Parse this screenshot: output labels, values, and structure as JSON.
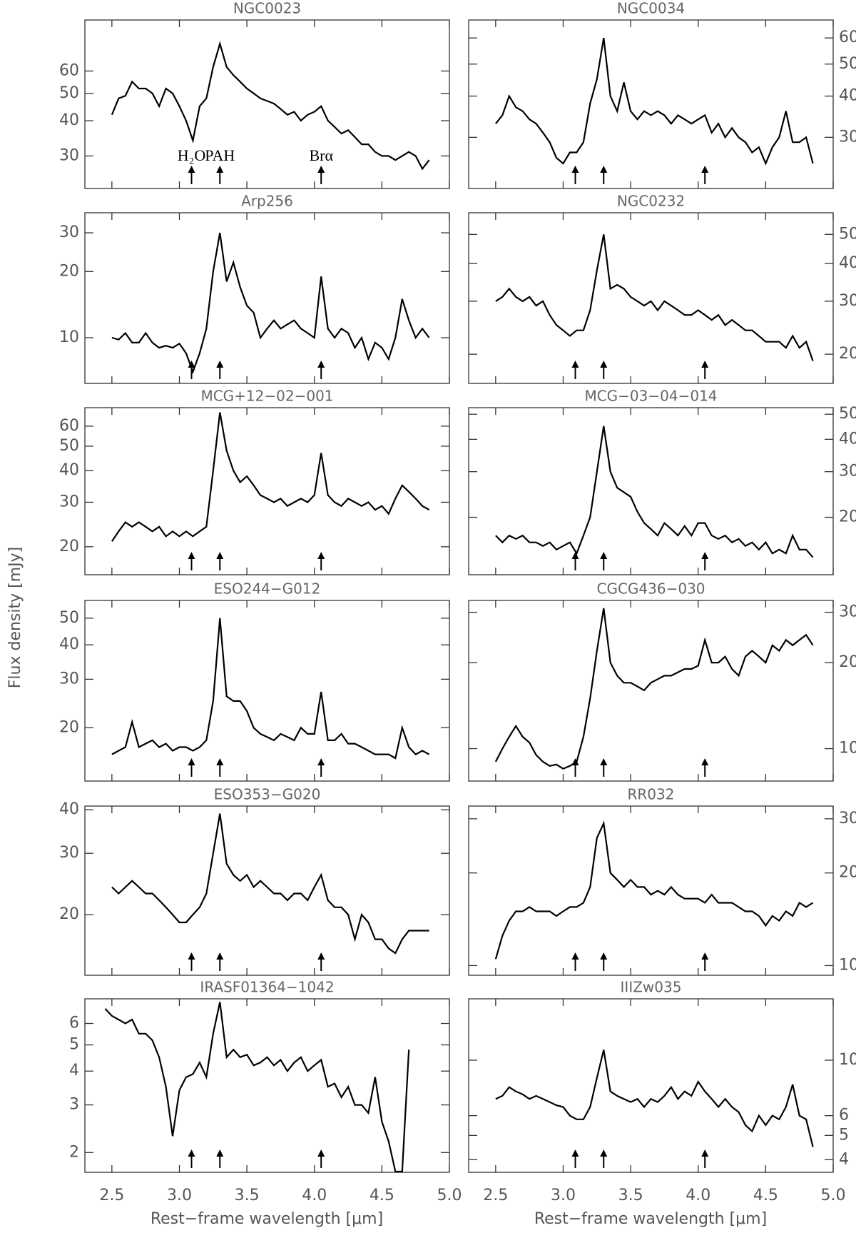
{
  "y_label": "Flux density [mJy]",
  "x_label": "Rest−frame wavelength [μm]",
  "xlim": [
    2.3,
    5.0
  ],
  "xticks": [
    2.5,
    {
      "value": 3,
      "label": "3.0"
    },
    3.5,
    {
      "value": 4,
      "label": "4.0"
    },
    4.5,
    {
      "value": 5,
      "label": "5.0"
    }
  ],
  "line_markers": [
    3.09,
    3.3,
    4.05
  ],
  "marker_labels": [
    "H₂O",
    "PAH",
    "Brα"
  ],
  "chart_data": [
    {
      "type": "line",
      "title": "NGC0023",
      "log_y": true,
      "y_axis_side": "left",
      "color": "#000000",
      "ylim": [
        23,
        91
      ],
      "yticks": [
        30,
        40,
        50,
        60
      ],
      "x": [
        2.5,
        2.55,
        2.6,
        2.65,
        2.7,
        2.75,
        2.8,
        2.85,
        2.9,
        2.95,
        3.0,
        3.05,
        3.1,
        3.15,
        3.2,
        3.25,
        3.3,
        3.35,
        3.4,
        3.45,
        3.5,
        3.55,
        3.6,
        3.65,
        3.7,
        3.75,
        3.8,
        3.85,
        3.9,
        3.95,
        4.0,
        4.05,
        4.1,
        4.15,
        4.2,
        4.25,
        4.3,
        4.35,
        4.4,
        4.45,
        4.5,
        4.55,
        4.6,
        4.65,
        4.7,
        4.75,
        4.8,
        4.85
      ],
      "values": [
        42,
        48,
        49,
        55,
        52,
        52,
        50,
        45,
        52,
        50,
        45,
        40,
        34,
        45,
        48,
        62,
        75,
        62,
        58,
        55,
        52,
        50,
        48,
        47,
        46,
        44,
        42,
        43,
        40,
        42,
        43,
        45,
        40,
        38,
        36,
        37,
        35,
        33,
        33,
        31,
        30,
        30,
        29,
        30,
        31,
        30,
        27,
        29
      ]
    },
    {
      "type": "line",
      "title": "NGC0034",
      "log_y": true,
      "y_axis_side": "right",
      "color": "#000000",
      "ylim": [
        21,
        68
      ],
      "yticks": [
        30,
        40,
        50,
        60
      ],
      "x": [
        2.5,
        2.55,
        2.6,
        2.65,
        2.7,
        2.75,
        2.8,
        2.85,
        2.9,
        2.95,
        3.0,
        3.05,
        3.1,
        3.15,
        3.2,
        3.25,
        3.3,
        3.35,
        3.4,
        3.45,
        3.5,
        3.55,
        3.6,
        3.65,
        3.7,
        3.75,
        3.8,
        3.85,
        3.9,
        3.95,
        4.0,
        4.05,
        4.1,
        4.15,
        4.2,
        4.25,
        4.3,
        4.35,
        4.4,
        4.45,
        4.5,
        4.55,
        4.6,
        4.65,
        4.7,
        4.75,
        4.8,
        4.85
      ],
      "values": [
        33,
        35,
        40,
        37,
        36,
        34,
        33,
        31,
        29,
        26,
        25,
        27,
        27,
        29,
        38,
        45,
        60,
        40,
        36,
        44,
        36,
        34,
        36,
        35,
        36,
        35,
        33,
        35,
        34,
        33,
        34,
        35,
        31,
        33,
        30,
        32,
        30,
        29,
        27,
        28,
        25,
        28,
        30,
        36,
        29,
        29,
        30,
        25
      ]
    },
    {
      "type": "line",
      "title": "Arp256",
      "log_y": true,
      "y_axis_side": "left",
      "color": "#000000",
      "ylim": [
        6.2,
        37
      ],
      "yticks": [
        10,
        20,
        30
      ],
      "x": [
        2.5,
        2.55,
        2.6,
        2.65,
        2.7,
        2.75,
        2.8,
        2.85,
        2.9,
        2.95,
        3.0,
        3.05,
        3.1,
        3.15,
        3.2,
        3.25,
        3.3,
        3.35,
        3.4,
        3.45,
        3.5,
        3.55,
        3.6,
        3.65,
        3.7,
        3.75,
        3.8,
        3.85,
        3.9,
        3.95,
        4.0,
        4.05,
        4.1,
        4.15,
        4.2,
        4.25,
        4.3,
        4.35,
        4.4,
        4.45,
        4.5,
        4.55,
        4.6,
        4.65,
        4.7,
        4.75,
        4.8,
        4.85
      ],
      "values": [
        10,
        9.8,
        10.5,
        9.5,
        9.5,
        10.5,
        9.5,
        9,
        9.2,
        9,
        9.4,
        8.5,
        7,
        8.5,
        11,
        20,
        30,
        18,
        22,
        17,
        14,
        13,
        10,
        11,
        12,
        11,
        11.5,
        12,
        11,
        10.5,
        10,
        19,
        11,
        10,
        11,
        10.5,
        9,
        10,
        8,
        9.5,
        9,
        8,
        10,
        15,
        12,
        10,
        11,
        10
      ]
    },
    {
      "type": "line",
      "title": "NGC0232",
      "log_y": true,
      "y_axis_side": "right",
      "color": "#000000",
      "ylim": [
        16,
        59
      ],
      "yticks": [
        20,
        30,
        40,
        50
      ],
      "x": [
        2.5,
        2.55,
        2.6,
        2.65,
        2.7,
        2.75,
        2.8,
        2.85,
        2.9,
        2.95,
        3.0,
        3.05,
        3.1,
        3.15,
        3.2,
        3.25,
        3.3,
        3.35,
        3.4,
        3.45,
        3.5,
        3.55,
        3.6,
        3.65,
        3.7,
        3.75,
        3.8,
        3.85,
        3.9,
        3.95,
        4.0,
        4.05,
        4.1,
        4.15,
        4.2,
        4.25,
        4.3,
        4.35,
        4.4,
        4.45,
        4.5,
        4.55,
        4.6,
        4.65,
        4.7,
        4.75,
        4.8,
        4.85
      ],
      "values": [
        30,
        31,
        33,
        31,
        30,
        31,
        29,
        30,
        27,
        25,
        24,
        23,
        24,
        24,
        28,
        38,
        50,
        33,
        34,
        33,
        31,
        30,
        29,
        30,
        28,
        30,
        29,
        28,
        27,
        27,
        28,
        27,
        26,
        27,
        25,
        26,
        25,
        24,
        24,
        23,
        22,
        22,
        22,
        21,
        23,
        21,
        22,
        19
      ]
    },
    {
      "type": "line",
      "title": "MCG+12−02−001",
      "log_y": true,
      "y_axis_side": "left",
      "color": "#000000",
      "ylim": [
        15.5,
        71
      ],
      "yticks": [
        20,
        30,
        40,
        50,
        60
      ],
      "x": [
        2.5,
        2.55,
        2.6,
        2.65,
        2.7,
        2.75,
        2.8,
        2.85,
        2.9,
        2.95,
        3.0,
        3.05,
        3.1,
        3.15,
        3.2,
        3.25,
        3.3,
        3.35,
        3.4,
        3.45,
        3.5,
        3.55,
        3.6,
        3.65,
        3.7,
        3.75,
        3.8,
        3.85,
        3.9,
        3.95,
        4.0,
        4.05,
        4.1,
        4.15,
        4.2,
        4.25,
        4.3,
        4.35,
        4.4,
        4.45,
        4.5,
        4.55,
        4.6,
        4.65,
        4.7,
        4.75,
        4.8,
        4.85
      ],
      "values": [
        21,
        23,
        25,
        24,
        25,
        24,
        23,
        24,
        22,
        23,
        22,
        23,
        22,
        23,
        24,
        40,
        68,
        48,
        40,
        36,
        38,
        35,
        32,
        31,
        30,
        31,
        29,
        30,
        31,
        30,
        32,
        47,
        32,
        30,
        29,
        31,
        30,
        29,
        30,
        28,
        29,
        27,
        31,
        35,
        33,
        31,
        29,
        28
      ]
    },
    {
      "type": "line",
      "title": "MCG−03−04−014",
      "log_y": true,
      "y_axis_side": "right",
      "color": "#000000",
      "ylim": [
        12,
        53
      ],
      "yticks": [
        20,
        30,
        40,
        50
      ],
      "x": [
        2.5,
        2.55,
        2.6,
        2.65,
        2.7,
        2.75,
        2.8,
        2.85,
        2.9,
        2.95,
        3.0,
        3.05,
        3.1,
        3.15,
        3.2,
        3.25,
        3.3,
        3.35,
        3.4,
        3.45,
        3.5,
        3.55,
        3.6,
        3.65,
        3.7,
        3.75,
        3.8,
        3.85,
        3.9,
        3.95,
        4.0,
        4.05,
        4.1,
        4.15,
        4.2,
        4.25,
        4.3,
        4.35,
        4.4,
        4.45,
        4.5,
        4.55,
        4.6,
        4.65,
        4.7,
        4.75,
        4.8,
        4.85
      ],
      "values": [
        17,
        16,
        17,
        16.5,
        17,
        16,
        16,
        15.5,
        16,
        15,
        15.5,
        16,
        14.5,
        17,
        20,
        30,
        45,
        30,
        26,
        25,
        24,
        21,
        19,
        18,
        17,
        19,
        18,
        17,
        18.5,
        17,
        19,
        19,
        17,
        16.5,
        17,
        16,
        16.5,
        15.5,
        16,
        15,
        16,
        14.5,
        15,
        14.5,
        17,
        15,
        15,
        14
      ]
    },
    {
      "type": "line",
      "title": "ESO244−G012",
      "log_y": true,
      "y_axis_side": "left",
      "color": "#000000",
      "ylim": [
        12.8,
        58
      ],
      "yticks": [
        20,
        30,
        40,
        50
      ],
      "x": [
        2.5,
        2.55,
        2.6,
        2.65,
        2.7,
        2.75,
        2.8,
        2.85,
        2.9,
        2.95,
        3.0,
        3.05,
        3.1,
        3.15,
        3.2,
        3.25,
        3.3,
        3.35,
        3.4,
        3.45,
        3.5,
        3.55,
        3.6,
        3.65,
        3.7,
        3.75,
        3.8,
        3.85,
        3.9,
        3.95,
        4.0,
        4.05,
        4.1,
        4.15,
        4.2,
        4.25,
        4.3,
        4.35,
        4.4,
        4.45,
        4.5,
        4.55,
        4.6,
        4.65,
        4.7,
        4.75,
        4.8,
        4.85
      ],
      "values": [
        16,
        16.5,
        17,
        21,
        17,
        17.5,
        18,
        17,
        17.5,
        16.5,
        17,
        17,
        16.5,
        17,
        18,
        25,
        50,
        26,
        25,
        25,
        23,
        20,
        19,
        18.5,
        18,
        19,
        18.5,
        18,
        20,
        19,
        19,
        27,
        18,
        18,
        19,
        17.5,
        17.5,
        17,
        16.5,
        16,
        16,
        16,
        15.5,
        20,
        17,
        16,
        16.5,
        16
      ]
    },
    {
      "type": "line",
      "title": "CGCG436−030",
      "log_y": true,
      "y_axis_side": "right",
      "color": "#000000",
      "ylim": [
        7.7,
        33
      ],
      "yticks": [
        10,
        20,
        30
      ],
      "x": [
        2.5,
        2.55,
        2.6,
        2.65,
        2.7,
        2.75,
        2.8,
        2.85,
        2.9,
        2.95,
        3.0,
        3.05,
        3.1,
        3.15,
        3.2,
        3.25,
        3.3,
        3.35,
        3.4,
        3.45,
        3.5,
        3.55,
        3.6,
        3.65,
        3.7,
        3.75,
        3.8,
        3.85,
        3.9,
        3.95,
        4.0,
        4.05,
        4.1,
        4.15,
        4.2,
        4.25,
        4.3,
        4.35,
        4.4,
        4.45,
        4.5,
        4.55,
        4.6,
        4.65,
        4.7,
        4.75,
        4.8,
        4.85
      ],
      "values": [
        9,
        10,
        11,
        12,
        11,
        10.5,
        9.5,
        9,
        8.7,
        8.8,
        8.5,
        8.7,
        9,
        11,
        15,
        22,
        31,
        20,
        18,
        17,
        17,
        16.5,
        16,
        17,
        17.5,
        18,
        18,
        18.5,
        19,
        19,
        19.5,
        24,
        20,
        20,
        21,
        19,
        18,
        21,
        22,
        21,
        20,
        23,
        22,
        24,
        23,
        24,
        25,
        23
      ]
    },
    {
      "type": "line",
      "title": "ESO353−G020",
      "log_y": true,
      "y_axis_side": "left",
      "color": "#000000",
      "ylim": [
        13.4,
        41
      ],
      "yticks": [
        20,
        30,
        40
      ],
      "x": [
        2.5,
        2.55,
        2.6,
        2.65,
        2.7,
        2.75,
        2.8,
        2.85,
        2.9,
        2.95,
        3.0,
        3.05,
        3.1,
        3.15,
        3.2,
        3.25,
        3.3,
        3.35,
        3.4,
        3.45,
        3.5,
        3.55,
        3.6,
        3.65,
        3.7,
        3.75,
        3.8,
        3.85,
        3.9,
        3.95,
        4.0,
        4.05,
        4.1,
        4.15,
        4.2,
        4.25,
        4.3,
        4.35,
        4.4,
        4.45,
        4.5,
        4.55,
        4.6,
        4.65,
        4.7,
        4.75,
        4.8,
        4.85
      ],
      "values": [
        24,
        23,
        24,
        25,
        24,
        23,
        23,
        22,
        21,
        20,
        19,
        19,
        20,
        21,
        23,
        30,
        39,
        28,
        26,
        25,
        26,
        24,
        25,
        24,
        23,
        23,
        22,
        23,
        23,
        22,
        24,
        26,
        22,
        21,
        21,
        20,
        17,
        20,
        19,
        17,
        17,
        16,
        15.5,
        17,
        18,
        18,
        18,
        18
      ]
    },
    {
      "type": "line",
      "title": "RR032",
      "log_y": true,
      "y_axis_side": "right",
      "color": "#000000",
      "ylim": [
        9.3,
        33
      ],
      "yticks": [
        10,
        20,
        30
      ],
      "x": [
        2.5,
        2.55,
        2.6,
        2.65,
        2.7,
        2.75,
        2.8,
        2.85,
        2.9,
        2.95,
        3.0,
        3.05,
        3.1,
        3.15,
        3.2,
        3.25,
        3.3,
        3.35,
        3.4,
        3.45,
        3.5,
        3.55,
        3.6,
        3.65,
        3.7,
        3.75,
        3.8,
        3.85,
        3.9,
        3.95,
        4.0,
        4.05,
        4.1,
        4.15,
        4.2,
        4.25,
        4.3,
        4.35,
        4.4,
        4.45,
        4.5,
        4.55,
        4.6,
        4.65,
        4.7,
        4.75,
        4.8,
        4.85
      ],
      "values": [
        10.5,
        12.5,
        14,
        15,
        15,
        15.5,
        15,
        15,
        15,
        14.5,
        15,
        15.5,
        15.5,
        16,
        18,
        26,
        29,
        20,
        19,
        18,
        19,
        18,
        18,
        17,
        17.5,
        17,
        18,
        17,
        16.5,
        16.5,
        16.5,
        16,
        17,
        16,
        16,
        16,
        15.5,
        15,
        15,
        14.5,
        13.5,
        14.5,
        14,
        15,
        14.5,
        16,
        15.5,
        16
      ]
    },
    {
      "type": "line",
      "title": "IRASF01364−1042",
      "log_y": true,
      "y_axis_side": "left",
      "color": "#000000",
      "ylim": [
        1.69,
        7.4
      ],
      "yticks": [
        2,
        3,
        4,
        5,
        6
      ],
      "x": [
        2.45,
        2.5,
        2.55,
        2.6,
        2.65,
        2.7,
        2.75,
        2.8,
        2.85,
        2.9,
        2.95,
        3.0,
        3.05,
        3.1,
        3.15,
        3.2,
        3.25,
        3.3,
        3.35,
        3.4,
        3.45,
        3.5,
        3.55,
        3.6,
        3.65,
        3.7,
        3.75,
        3.8,
        3.85,
        3.9,
        3.95,
        4.0,
        4.05,
        4.1,
        4.15,
        4.2,
        4.25,
        4.3,
        4.35,
        4.4,
        4.45,
        4.5,
        4.55,
        4.6,
        4.65,
        4.7
      ],
      "values": [
        6.8,
        6.4,
        6.2,
        6,
        6.2,
        5.5,
        5.5,
        5.2,
        4.5,
        3.5,
        2.3,
        3.4,
        3.8,
        3.9,
        4.3,
        3.8,
        5.5,
        7.2,
        4.5,
        4.8,
        4.5,
        4.6,
        4.2,
        4.3,
        4.5,
        4.2,
        4.4,
        4.0,
        4.3,
        4.5,
        4.0,
        4.2,
        4.4,
        3.5,
        3.6,
        3.2,
        3.5,
        3.0,
        3.0,
        2.8,
        3.8,
        2.6,
        2.2,
        1.7,
        1.7,
        4.8
      ]
    },
    {
      "type": "line",
      "title": "IIIZw035",
      "log_y": true,
      "y_axis_side": "right",
      "color": "#000000",
      "ylim": [
        3.56,
        17.6
      ],
      "yticks": [
        4,
        5,
        6,
        10
      ],
      "x": [
        2.5,
        2.55,
        2.6,
        2.65,
        2.7,
        2.75,
        2.8,
        2.85,
        2.9,
        2.95,
        3.0,
        3.05,
        3.1,
        3.15,
        3.2,
        3.25,
        3.3,
        3.35,
        3.4,
        3.45,
        3.5,
        3.55,
        3.6,
        3.65,
        3.7,
        3.75,
        3.8,
        3.85,
        3.9,
        3.95,
        4.0,
        4.05,
        4.1,
        4.15,
        4.2,
        4.25,
        4.3,
        4.35,
        4.4,
        4.45,
        4.5,
        4.55,
        4.6,
        4.65,
        4.7,
        4.75,
        4.8,
        4.85
      ],
      "values": [
        7,
        7.2,
        7.8,
        7.5,
        7.3,
        7,
        7.2,
        7,
        6.8,
        6.6,
        6.5,
        6,
        5.8,
        5.8,
        6.5,
        8.5,
        11,
        7.5,
        7.2,
        7,
        6.8,
        7,
        6.5,
        7,
        6.8,
        7.2,
        7.8,
        7,
        7.5,
        7.2,
        8.2,
        7.5,
        7,
        6.5,
        7,
        6.5,
        6.2,
        5.5,
        5.2,
        6,
        5.5,
        6,
        5.8,
        6.5,
        8,
        6,
        5.8,
        4.5
      ]
    }
  ]
}
